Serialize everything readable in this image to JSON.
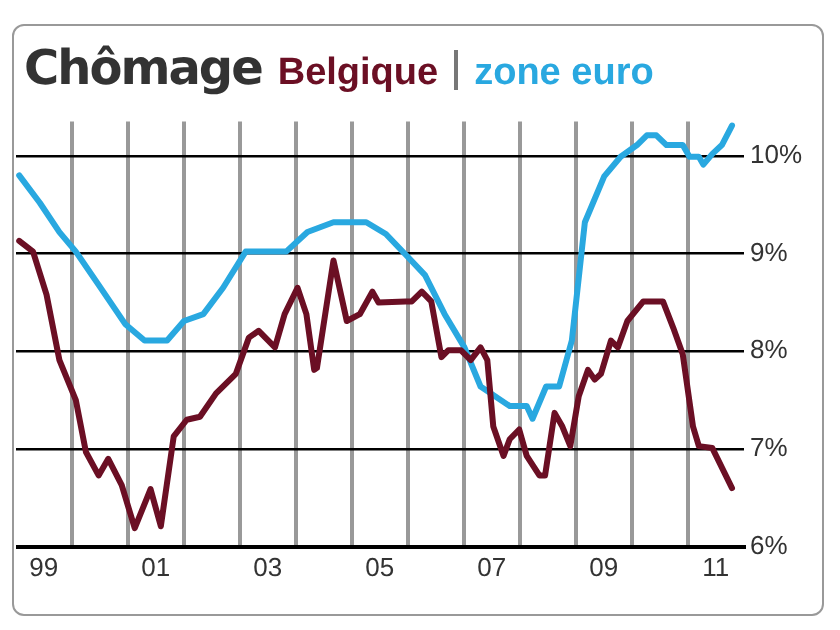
{
  "chart_data": {
    "type": "line",
    "title": "Chômage",
    "legend": "top",
    "grid": true,
    "marker": "none",
    "line_style": "solid",
    "xlim": [
      "1999-01-01",
      "2012-01-01"
    ],
    "ylim": [
      6,
      10.35
    ],
    "xticks": [
      {
        "value": "1999-07-01",
        "label": "99"
      },
      {
        "value": "2000-01-01",
        "label": null
      },
      {
        "value": "2001-01-01",
        "label": null
      },
      {
        "value": "2001-07-01",
        "label": "01"
      },
      {
        "value": "2002-01-01",
        "label": null
      },
      {
        "value": "2003-01-01",
        "label": null
      },
      {
        "value": "2003-07-01",
        "label": "03"
      },
      {
        "value": "2004-01-01",
        "label": null
      },
      {
        "value": "2005-01-01",
        "label": null
      },
      {
        "value": "2005-07-01",
        "label": "05"
      },
      {
        "value": "2006-01-01",
        "label": null
      },
      {
        "value": "2007-01-01",
        "label": null
      },
      {
        "value": "2007-07-01",
        "label": "07"
      },
      {
        "value": "2008-01-01",
        "label": null
      },
      {
        "value": "2009-01-01",
        "label": null
      },
      {
        "value": "2009-07-01",
        "label": "09"
      },
      {
        "value": "2010-01-01",
        "label": null
      },
      {
        "value": "2011-01-01",
        "label": null
      },
      {
        "value": "2011-07-01",
        "label": "11"
      }
    ],
    "yticks": [
      {
        "value": 6,
        "label": "6%"
      },
      {
        "value": 7,
        "label": "7%"
      },
      {
        "value": 8,
        "label": "8%"
      },
      {
        "value": 9,
        "label": "9%"
      },
      {
        "value": 10,
        "label": "10%"
      }
    ],
    "series": [
      {
        "name": "Belgique",
        "color": "#6b0f24",
        "x": [
          "1999-01-22",
          "1999-04-22",
          "1999-07-19",
          "1999-10-11",
          "2000-01-26",
          "2000-04-01",
          "2000-06-23",
          "2000-08-25",
          "2000-11-21",
          "2001-02-14",
          "2001-05-28",
          "2001-08-03",
          "2001-10-26",
          "2002-01-19",
          "2002-04-15",
          "2002-07-29",
          "2002-12-05",
          "2003-02-28",
          "2003-05-03",
          "2003-08-17",
          "2003-10-19",
          "2004-01-11",
          "2004-03-09",
          "2004-04-29",
          "2004-05-17",
          "2004-09-02",
          "2004-11-28",
          "2005-02-21",
          "2005-05-14",
          "2005-06-23",
          "2005-12-16",
          "2006-01-26",
          "2006-04-01",
          "2006-06-02",
          "2006-08-07",
          "2006-09-20",
          "2006-12-13",
          "2007-02-14",
          "2007-04-19",
          "2007-06-02",
          "2007-07-11",
          "2007-09-16",
          "2007-10-26",
          "2007-12-27",
          "2008-02-14",
          "2008-05-07",
          "2008-06-13",
          "2008-08-14",
          "2008-10-04",
          "2008-11-25",
          "2009-01-19",
          "2009-03-20",
          "2009-05-03",
          "2009-06-13",
          "2009-08-17",
          "2009-10-01",
          "2009-12-02",
          "2010-03-16",
          "2010-07-22",
          "2010-09-27",
          "2010-11-28",
          "2011-02-03",
          "2011-03-13",
          "2011-06-09",
          "2011-10-15"
        ],
        "values": [
          9.13,
          9.02,
          8.58,
          7.91,
          7.5,
          6.97,
          6.73,
          6.9,
          6.63,
          6.19,
          6.59,
          6.21,
          7.13,
          7.3,
          7.33,
          7.57,
          7.77,
          8.14,
          8.21,
          8.04,
          8.38,
          8.65,
          8.38,
          7.81,
          7.83,
          8.93,
          8.31,
          8.38,
          8.61,
          8.5,
          8.51,
          8.51,
          8.61,
          8.51,
          7.94,
          8.01,
          8.01,
          7.91,
          8.04,
          7.91,
          7.23,
          6.93,
          7.1,
          7.2,
          6.93,
          6.73,
          6.73,
          7.37,
          7.23,
          7.03,
          7.54,
          7.81,
          7.71,
          7.77,
          8.11,
          8.04,
          8.31,
          8.51,
          8.51,
          8.24,
          7.97,
          7.23,
          7.03,
          7.01,
          6.6
        ]
      },
      {
        "name": "zone euro",
        "color": "#29a8e0",
        "x": [
          "1999-01-22",
          "1999-06-05",
          "1999-10-11",
          "2000-01-26",
          "2000-06-23",
          "2000-12-13",
          "2001-04-19",
          "2001-09-13",
          "2002-01-01",
          "2002-05-07",
          "2002-09-13",
          "2003-02-07",
          "2003-10-29",
          "2004-03-16",
          "2004-09-02",
          "2005-04-04",
          "2005-08-10",
          "2005-12-16",
          "2006-04-22",
          "2006-08-28",
          "2007-01-04",
          "2007-04-19",
          "2007-10-26",
          "2008-02-14",
          "2008-03-23",
          "2008-06-20",
          "2008-09-13",
          "2008-12-05",
          "2009-02-28",
          "2009-07-04",
          "2009-10-19",
          "2010-02-03",
          "2010-04-08",
          "2010-06-09",
          "2010-08-14",
          "2010-11-28",
          "2011-01-11",
          "2011-03-13",
          "2011-04-11",
          "2011-06-09",
          "2011-08-10",
          "2011-10-15"
        ],
        "values": [
          9.8,
          9.52,
          9.22,
          9.02,
          8.68,
          8.28,
          8.11,
          8.11,
          8.31,
          8.38,
          8.65,
          9.02,
          9.02,
          9.22,
          9.32,
          9.32,
          9.2,
          8.99,
          8.78,
          8.38,
          8.04,
          7.64,
          7.44,
          7.44,
          7.31,
          7.64,
          7.64,
          8.11,
          9.32,
          9.79,
          9.99,
          10.11,
          10.21,
          10.21,
          10.11,
          10.11,
          9.99,
          9.99,
          9.91,
          10.02,
          10.11,
          10.31
        ]
      }
    ]
  }
}
